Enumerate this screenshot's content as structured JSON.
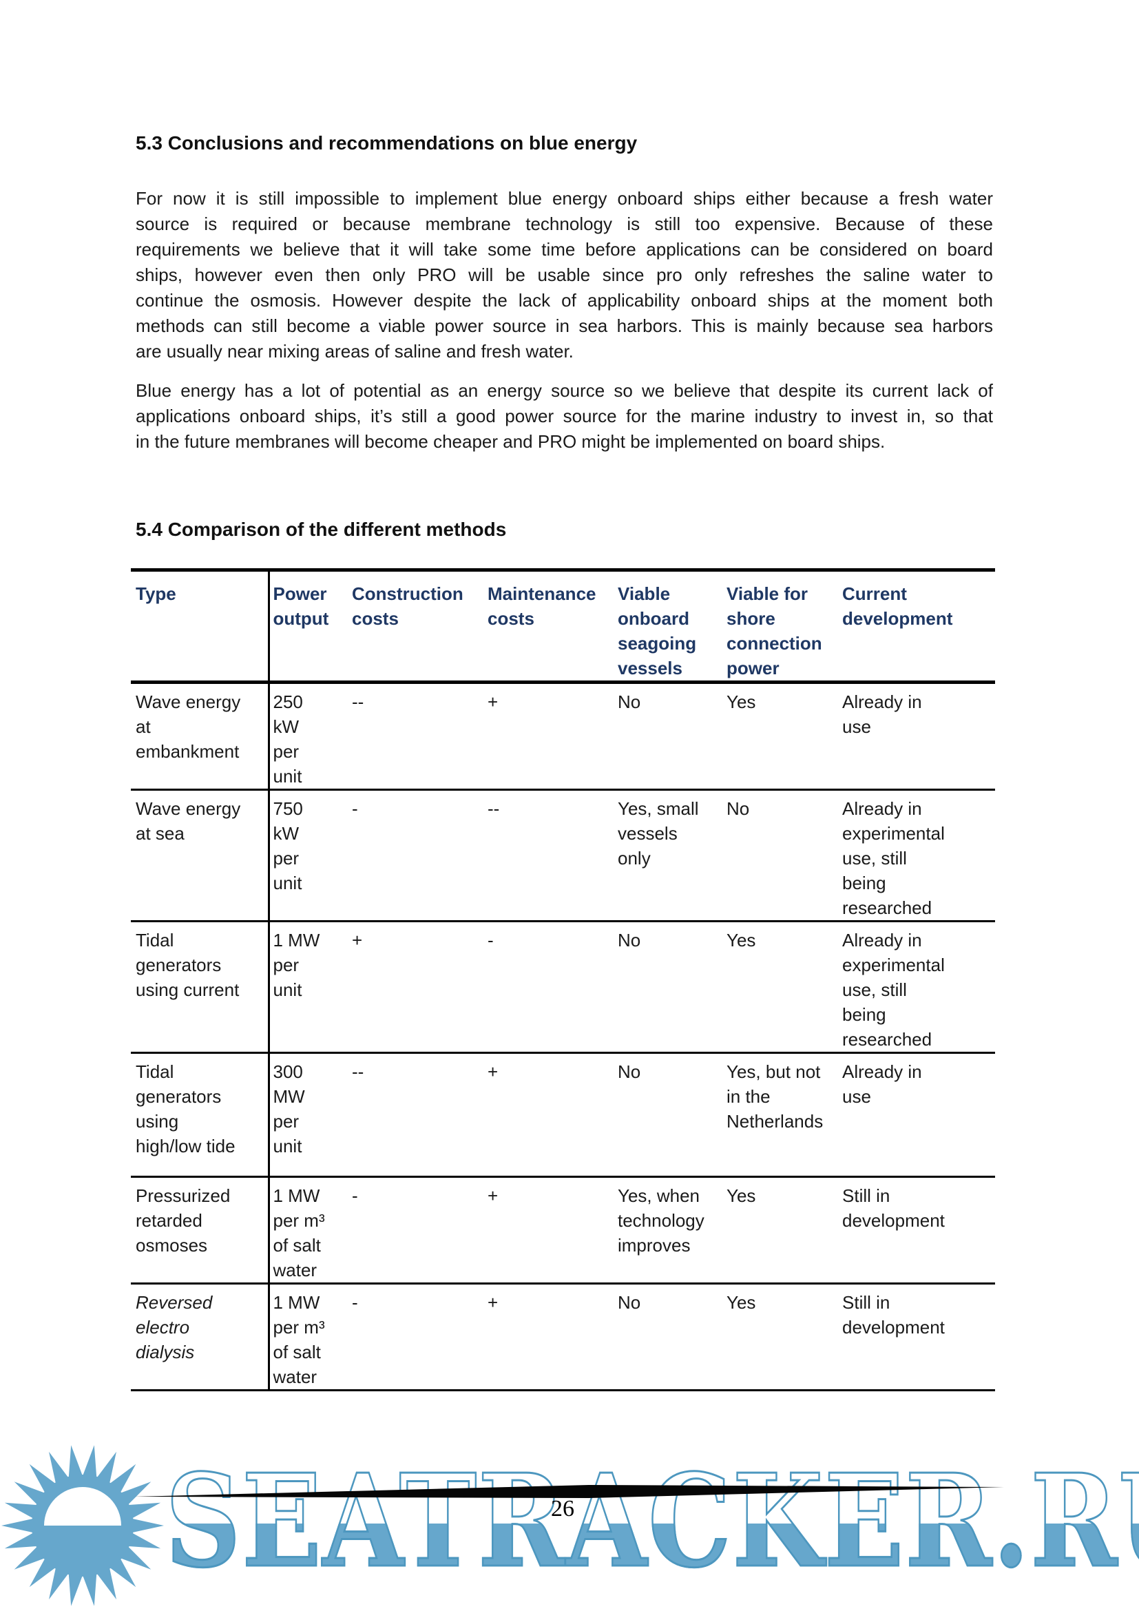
{
  "document": {
    "section_5_3": {
      "heading": "5.3 Conclusions and recommendations on blue energy",
      "paragraph_1_lines": [
        "For now it is still impossible to implement blue energy onboard ships either because a fresh water",
        "source is required or because membrane technology is still too expensive. Because of these",
        "requirements we believe that it will take some time before applications can be considered on board",
        "ships, however even then only PRO will be usable since pro only refreshes the saline water to",
        "continue the osmosis. However despite the lack of applicability onboard ships at the moment both",
        "methods can still become a viable power source in sea harbors. This is mainly because sea harbors",
        "are usually near mixing areas of saline and fresh water."
      ],
      "paragraph_2_lines": [
        "Blue energy has a lot of potential as an energy source so we believe that despite its current lack of",
        "applications onboard ships, it’s still a good power source for the marine industry to invest in, so that",
        "in the future membranes will become cheaper and PRO might be implemented on board ships."
      ]
    },
    "section_5_4": {
      "heading": "5.4 Comparison of the different methods"
    },
    "comparison_table": {
      "headers": [
        "Type",
        "Power\noutput",
        "Construction\ncosts",
        "Maintenance\ncosts",
        "Viable\nonboard\nseagoing\nvessels",
        "Viable for\nshore\nconnection\npower",
        "Current\ndevelopment"
      ],
      "rows": [
        [
          "Wave energy\nat\nembankment",
          "250\nkW\nper\nunit",
          "--",
          "+",
          "No",
          "Yes",
          "Already in\nuse"
        ],
        [
          "Wave energy\nat sea",
          "750\nkW\nper\nunit",
          "-",
          "--",
          "Yes, small\nvessels\nonly",
          "No",
          "Already in\nexperimental\nuse, still\nbeing\nresearched"
        ],
        [
          "Tidal\ngenerators\nusing current",
          "1 MW\nper\nunit",
          "+",
          "-",
          "No",
          "Yes",
          "Already in\nexperimental\nuse, still\nbeing\nresearched"
        ],
        [
          "Tidal\ngenerators\nusing\nhigh/low tide",
          "300\nMW\nper\nunit",
          "--",
          "+",
          "No",
          "Yes, but not\nin the\nNetherlands",
          "Already in\nuse"
        ],
        [
          "Pressurized\nretarded\nosmoses",
          "1 MW\nper m³\nof salt\nwater",
          "-",
          "+",
          "Yes, when\ntechnology\nimproves",
          "Yes",
          "Still in\ndevelopment"
        ],
        [
          "Reversed\nelectro\ndialysis",
          "1 MW\nper m³\nof salt\nwater",
          "-",
          "+",
          "No",
          "Yes",
          "Still in\ndevelopment"
        ]
      ]
    },
    "footer": {
      "page_number": "26"
    },
    "watermark": {
      "text": "SEATRACKER.RU",
      "logo": "sun"
    },
    "colors": {
      "table_header_navy": "#1f3864",
      "watermark_blue": "#66a7cc",
      "watermark_outline": "#4d97bf",
      "body_text": "#1a1a1a"
    }
  }
}
